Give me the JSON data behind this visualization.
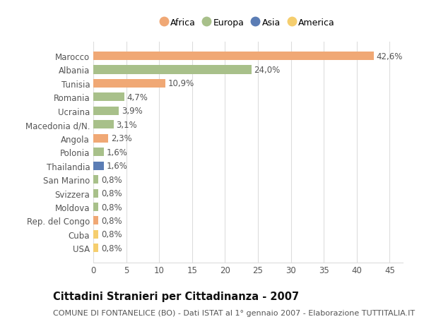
{
  "categories": [
    "Marocco",
    "Albania",
    "Tunisia",
    "Romania",
    "Ucraina",
    "Macedonia d/N.",
    "Angola",
    "Polonia",
    "Thailandia",
    "San Marino",
    "Svizzera",
    "Moldova",
    "Rep. del Congo",
    "Cuba",
    "USA"
  ],
  "values": [
    42.6,
    24.0,
    10.9,
    4.7,
    3.9,
    3.1,
    2.3,
    1.6,
    1.6,
    0.8,
    0.8,
    0.8,
    0.8,
    0.8,
    0.8
  ],
  "labels": [
    "42,6%",
    "24,0%",
    "10,9%",
    "4,7%",
    "3,9%",
    "3,1%",
    "2,3%",
    "1,6%",
    "1,6%",
    "0,8%",
    "0,8%",
    "0,8%",
    "0,8%",
    "0,8%",
    "0,8%"
  ],
  "continents": [
    "Africa",
    "Europa",
    "Africa",
    "Europa",
    "Europa",
    "Europa",
    "Africa",
    "Europa",
    "Asia",
    "Europa",
    "Europa",
    "Europa",
    "Africa",
    "America",
    "America"
  ],
  "continent_colors": {
    "Africa": "#F0A875",
    "Europa": "#A8C08A",
    "Asia": "#5B7DB5",
    "America": "#F5CE6E"
  },
  "legend_order": [
    "Africa",
    "Europa",
    "Asia",
    "America"
  ],
  "title": "Cittadini Stranieri per Cittadinanza - 2007",
  "subtitle": "COMUNE DI FONTANELICE (BO) - Dati ISTAT al 1° gennaio 2007 - Elaborazione TUTTITALIA.IT",
  "xlim": [
    0,
    47
  ],
  "xticks": [
    0,
    5,
    10,
    15,
    20,
    25,
    30,
    35,
    40,
    45
  ],
  "background_color": "#ffffff",
  "grid_color": "#dddddd",
  "bar_height": 0.62,
  "title_fontsize": 10.5,
  "subtitle_fontsize": 8,
  "tick_fontsize": 8.5,
  "label_fontsize": 8.5
}
